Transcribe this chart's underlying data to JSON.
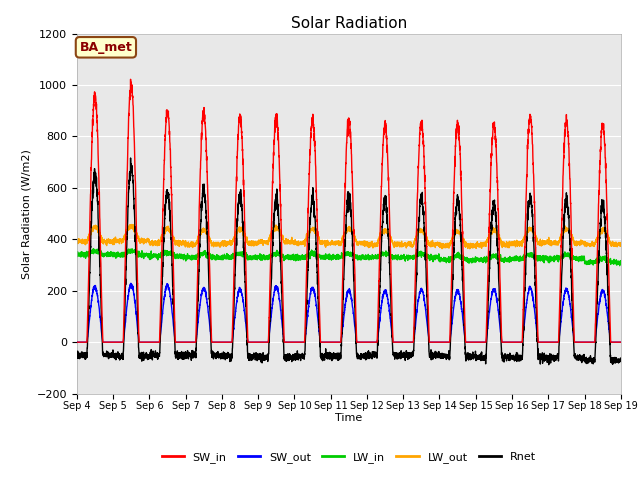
{
  "title": "Solar Radiation",
  "ylabel": "Solar Radiation (W/m2)",
  "xlabel": "Time",
  "xtick_labels": [
    "Sep 4",
    "Sep 5",
    "Sep 6",
    "Sep 7",
    "Sep 8",
    "Sep 9",
    "Sep 10",
    "Sep 11",
    "Sep 12",
    "Sep 13",
    "Sep 14",
    "Sep 15",
    "Sep 16",
    "Sep 17",
    "Sep 18",
    "Sep 19"
  ],
  "ylim": [
    -200,
    1200
  ],
  "yticks": [
    -200,
    0,
    200,
    400,
    600,
    800,
    1000,
    1200
  ],
  "grid_color": "#ffffff",
  "plot_bg_color": "#e8e8e8",
  "fig_bg_color": "#ffffff",
  "label_box_text": "BA_met",
  "label_box_bg": "#ffffcc",
  "label_box_edge": "#8b4513",
  "lines": {
    "SW_in": {
      "color": "#ff0000",
      "lw": 1.0
    },
    "SW_out": {
      "color": "#0000ff",
      "lw": 1.0
    },
    "LW_in": {
      "color": "#00cc00",
      "lw": 1.0
    },
    "LW_out": {
      "color": "#ffa500",
      "lw": 1.0
    },
    "Rnet": {
      "color": "#000000",
      "lw": 1.0
    }
  },
  "n_days": 15,
  "pts_per_day": 288,
  "SW_in_peaks": [
    960,
    1000,
    900,
    890,
    875,
    875,
    865,
    865,
    845,
    855,
    845,
    845,
    875,
    860,
    845
  ],
  "SW_out_peaks": [
    215,
    225,
    220,
    210,
    205,
    215,
    210,
    200,
    200,
    205,
    200,
    205,
    210,
    205,
    200
  ],
  "LW_in_base": [
    340,
    340,
    335,
    330,
    330,
    330,
    330,
    330,
    330,
    330,
    320,
    320,
    325,
    325,
    310
  ],
  "LW_out_base": [
    390,
    395,
    385,
    380,
    385,
    390,
    385,
    385,
    380,
    380,
    375,
    380,
    385,
    385,
    380
  ],
  "LW_in_day_bump": 15,
  "LW_out_day_bump": 55,
  "legend_entries": [
    "SW_in",
    "SW_out",
    "LW_in",
    "LW_out",
    "Rnet"
  ]
}
